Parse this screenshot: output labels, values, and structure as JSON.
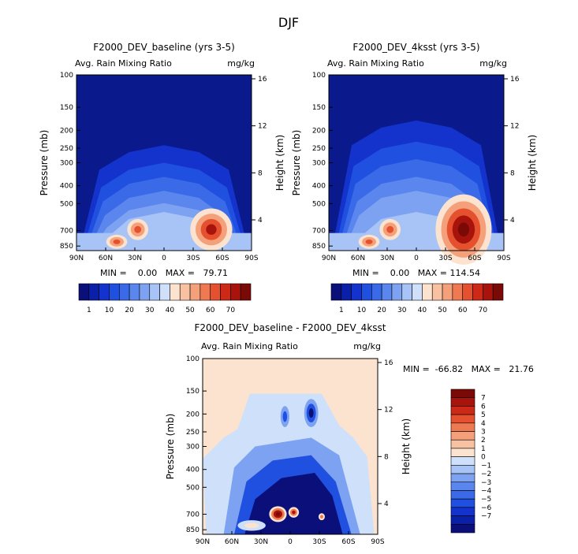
{
  "figure": {
    "main_title": "DJF"
  },
  "chart_data": [
    {
      "type": "heatmap",
      "title": "F2000_DEV_baseline (yrs 3-5)",
      "subtitle_left": "Avg. Rain Mixing Ratio",
      "subtitle_right": "mg/kg",
      "ylabel": "Pressure (mb)",
      "ylabel_right": "Height (km)",
      "x_ticks": [
        "90N",
        "60N",
        "30N",
        "0",
        "30S",
        "60S",
        "90S"
      ],
      "y_ticks": [
        "100",
        "150",
        "200",
        "250",
        "300",
        "400",
        "500",
        "700",
        "850"
      ],
      "y2_ticks": [
        "16",
        "12",
        "8",
        "4"
      ],
      "stats_text": "MIN =    0.00   MAX =   79.71",
      "min": 0.0,
      "max": 79.71,
      "colorbar_labels": [
        "1",
        "10",
        "20",
        "30",
        "40",
        "50",
        "60",
        "70"
      ]
    },
    {
      "type": "heatmap",
      "title": "F2000_DEV_4ksst (yrs 3-5)",
      "subtitle_left": "Avg. Rain Mixing Ratio",
      "subtitle_right": "mg/kg",
      "ylabel": "Pressure (mb)",
      "ylabel_right": "Height (km)",
      "x_ticks": [
        "90N",
        "60N",
        "30N",
        "0",
        "30S",
        "60S",
        "90S"
      ],
      "y_ticks": [
        "100",
        "150",
        "200",
        "250",
        "300",
        "400",
        "500",
        "700",
        "850"
      ],
      "y2_ticks": [
        "16",
        "12",
        "8",
        "4"
      ],
      "stats_text": "MIN =    0.00   MAX = 114.54",
      "min": 0.0,
      "max": 114.54,
      "colorbar_labels": [
        "1",
        "10",
        "20",
        "30",
        "40",
        "50",
        "60",
        "70"
      ]
    },
    {
      "type": "heatmap",
      "title": "F2000_DEV_baseline - F2000_DEV_4ksst",
      "subtitle_left": "Avg. Rain Mixing Ratio",
      "subtitle_right": "mg/kg",
      "ylabel": "Pressure (mb)",
      "ylabel_right": "Height (km)",
      "x_ticks": [
        "90N",
        "60N",
        "30N",
        "0",
        "30S",
        "60S",
        "90S"
      ],
      "y_ticks": [
        "100",
        "150",
        "200",
        "250",
        "300",
        "400",
        "500",
        "700",
        "850"
      ],
      "y2_ticks": [
        "16",
        "12",
        "8",
        "4"
      ],
      "stats_text": "MIN =  -66.82   MAX =   21.76",
      "min": -66.82,
      "max": 21.76,
      "colorbar_labels": [
        "7",
        "6",
        "5",
        "4",
        "3",
        "2",
        "1",
        "0",
        "−1",
        "−2",
        "−3",
        "−4",
        "−5",
        "−6",
        "−7"
      ]
    }
  ],
  "palettes": {
    "seq": [
      "#0a0f7a",
      "#0a20a8",
      "#1432cc",
      "#2050e0",
      "#3a6ae8",
      "#5a86ee",
      "#7ea2f2",
      "#a8c4f6",
      "#cfe0fa",
      "#fbe3cf",
      "#f8c2a2",
      "#f4a07a",
      "#ef7a52",
      "#e5502e",
      "#cc2a16",
      "#a8140c",
      "#7a0a06"
    ],
    "diff": [
      "#7a0a06",
      "#a8140c",
      "#cc2a16",
      "#e5502e",
      "#ef7a52",
      "#f4a07a",
      "#f8c2a2",
      "#fbe3cf",
      "#cfe0fa",
      "#a8c4f6",
      "#7ea2f2",
      "#5a86ee",
      "#3a6ae8",
      "#2050e0",
      "#1432cc",
      "#0a20a8",
      "#0a0f7a"
    ],
    "base_bg": "#0a1a8c",
    "diff_bg": "#fbe3cf",
    "diff_light": "#cfe0fa",
    "diff_mid": "#7ea2f2",
    "diff_blue": "#2050e0",
    "diff_dark": "#0a0f7a"
  }
}
